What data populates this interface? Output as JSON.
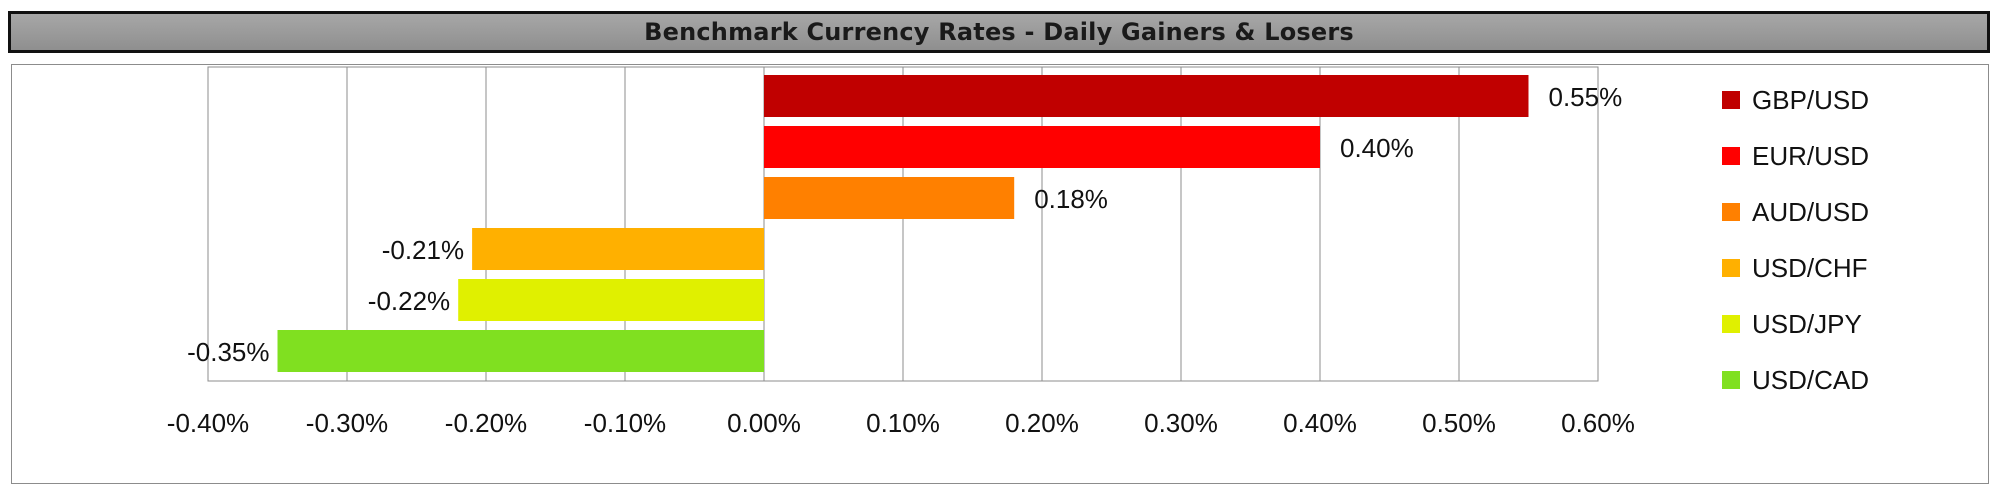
{
  "chart_data": {
    "type": "bar",
    "orientation": "horizontal",
    "title": "Benchmark Currency Rates - Daily Gainers & Losers",
    "categories": [
      "GBP/USD",
      "EUR/USD",
      "AUD/USD",
      "USD/CHF",
      "USD/JPY",
      "USD/CAD"
    ],
    "values": [
      0.55,
      0.4,
      0.18,
      -0.21,
      -0.22,
      -0.35
    ],
    "value_labels": [
      "0.55%",
      "0.40%",
      "0.18%",
      "-0.21%",
      "-0.22%",
      "-0.35%"
    ],
    "colors": [
      "#c00000",
      "#ff0000",
      "#ff8000",
      "#ffb000",
      "#e0f000",
      "#80e020"
    ],
    "xlim": [
      -0.4,
      0.6
    ],
    "x_ticks": [
      -0.4,
      -0.3,
      -0.2,
      -0.1,
      0.0,
      0.1,
      0.2,
      0.3,
      0.4,
      0.5,
      0.6
    ],
    "x_tick_labels": [
      "-0.40%",
      "-0.30%",
      "-0.20%",
      "-0.10%",
      "0.00%",
      "0.10%",
      "0.20%",
      "0.30%",
      "0.40%",
      "0.50%",
      "0.60%"
    ],
    "xlabel": "",
    "ylabel": "",
    "grid": "vertical",
    "legend_position": "right"
  }
}
